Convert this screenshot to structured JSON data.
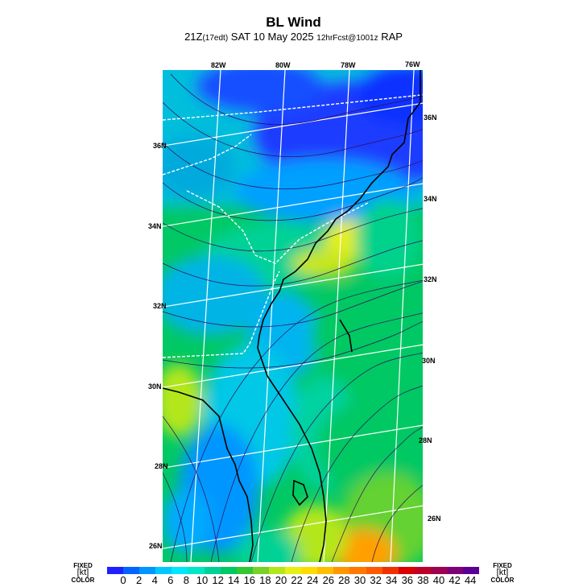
{
  "header": {
    "title": "BL Wind",
    "subtitle_time": "21Z",
    "subtitle_local": "(17edt)",
    "subtitle_date": "SAT 10 May 2025",
    "subtitle_fcst": "12hrFcst@1001z",
    "subtitle_model": "RAP"
  },
  "map": {
    "lon_labels_top": [
      "82W",
      "80W",
      "78W",
      "76W"
    ],
    "lat_labels_left": [
      "36N",
      "34N",
      "32N",
      "30N",
      "28N",
      "26N"
    ],
    "lat_labels_right": [
      "36N",
      "34N",
      "32N",
      "30N",
      "28N",
      "26N"
    ],
    "colors": {
      "state_border": "#ffffff",
      "coast": "#000000",
      "grid": "#ffffff",
      "streamline": "#3a0a5a"
    }
  },
  "legend": {
    "left_top": "FIXED",
    "left_unit": "[kt]",
    "left_bottom": "COLOR",
    "right_top": "FIXED",
    "right_unit": "[kt]",
    "right_bottom": "COLOR",
    "ticks": [
      "0",
      "2",
      "4",
      "6",
      "8",
      "10",
      "12",
      "14",
      "16",
      "18",
      "20",
      "22",
      "24",
      "26",
      "28",
      "30",
      "32",
      "34",
      "36",
      "38",
      "40",
      "42",
      "44"
    ],
    "colors": [
      "#2020ff",
      "#0064ff",
      "#0096ff",
      "#00c8ff",
      "#00e6ff",
      "#00e6c8",
      "#00d296",
      "#00c864",
      "#32c832",
      "#78d228",
      "#b4e61e",
      "#e6f014",
      "#ffdc00",
      "#ffbe00",
      "#ff9600",
      "#ff7800",
      "#ff5a00",
      "#f03200",
      "#dc0000",
      "#be0028",
      "#a00050",
      "#800078",
      "#5a0096"
    ]
  }
}
